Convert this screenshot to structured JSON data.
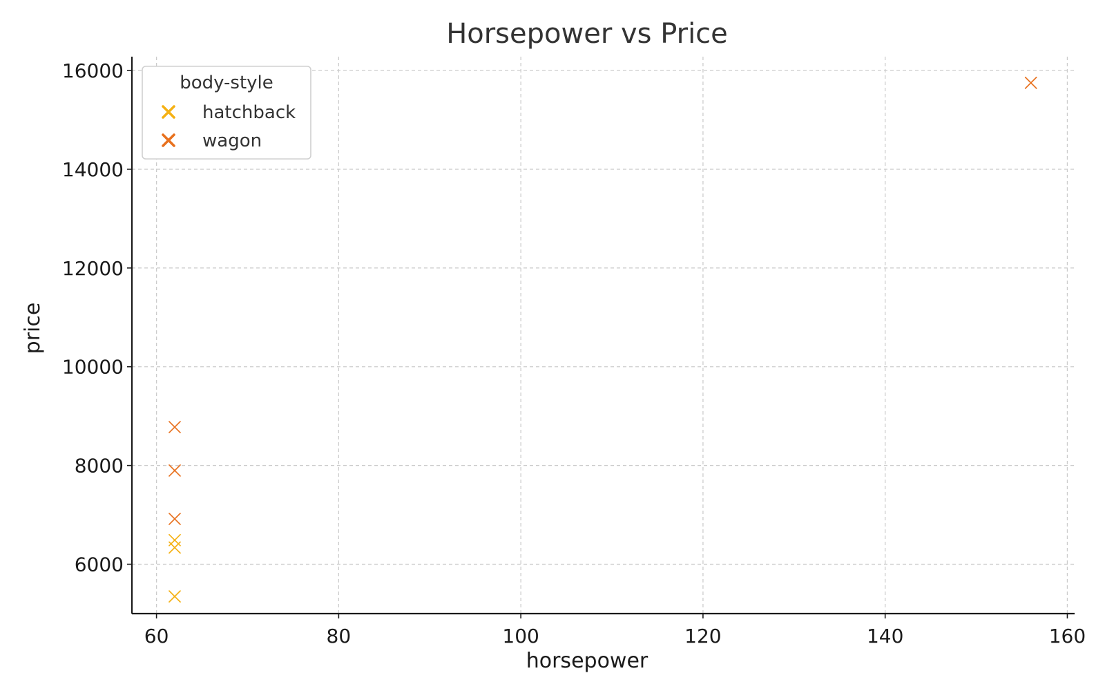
{
  "chart_data": {
    "type": "scatter",
    "title": "Horsepower vs Price",
    "xlabel": "horsepower",
    "ylabel": "price",
    "xlim": [
      57.3,
      160.8
    ],
    "ylim": [
      5000,
      16280
    ],
    "xticks": [
      60,
      80,
      100,
      120,
      140,
      160
    ],
    "yticks": [
      6000,
      8000,
      10000,
      12000,
      14000,
      16000
    ],
    "grid": true,
    "marker": "x",
    "legend": {
      "title": "body-style",
      "placement": "top-left"
    },
    "series": [
      {
        "name": "hatchback",
        "color": "#f5b114",
        "points": [
          {
            "x": 62,
            "y": 6488
          },
          {
            "x": 62,
            "y": 6338
          },
          {
            "x": 62,
            "y": 5348
          }
        ]
      },
      {
        "name": "wagon",
        "color": "#e8711e",
        "points": [
          {
            "x": 62,
            "y": 8778
          },
          {
            "x": 62,
            "y": 7898
          },
          {
            "x": 62,
            "y": 6918
          },
          {
            "x": 156,
            "y": 15750
          }
        ]
      }
    ]
  }
}
